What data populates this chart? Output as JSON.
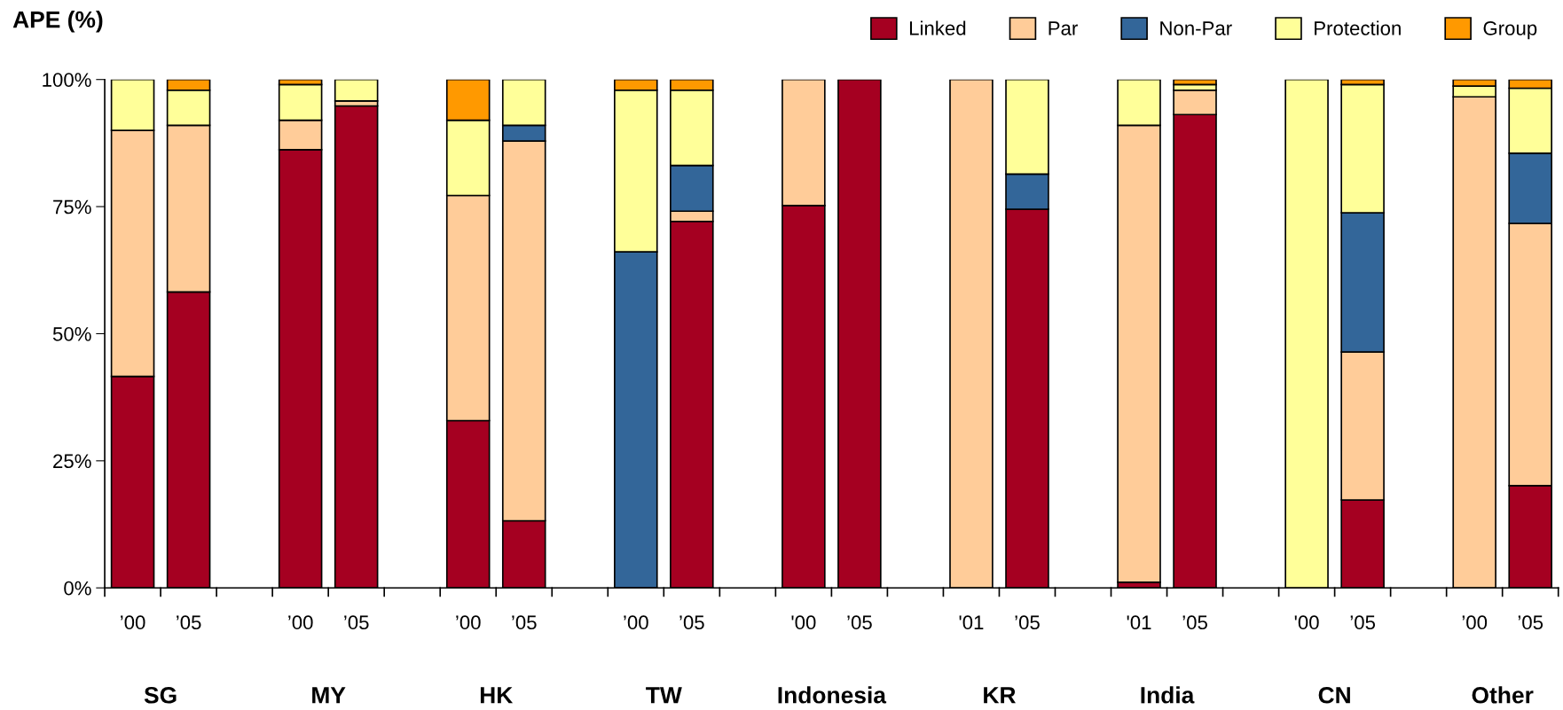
{
  "chart_data": {
    "type": "bar",
    "stacked": true,
    "title": "APE (%)",
    "categories": [
      "’00",
      "’05",
      null,
      "’00",
      "’05",
      null,
      "’00",
      "’05",
      null,
      "’00",
      "’05",
      null,
      "'00",
      "’05",
      null,
      "'01",
      "’05",
      null,
      "'01",
      "’05",
      null,
      "'00",
      "’05",
      null,
      "’00",
      "’05"
    ],
    "series": [
      {
        "name": "Linked",
        "color": "#a50021",
        "values": [
          41.6,
          58.2,
          null,
          86.2,
          94.8,
          null,
          32.9,
          13.2,
          null,
          null,
          72.1,
          null,
          75.2,
          100,
          null,
          null,
          74.5,
          null,
          1.1,
          93.1,
          null,
          null,
          17.3,
          null,
          null,
          20.1
        ]
      },
      {
        "name": "Par",
        "color": "#ffcc99",
        "values": [
          48.4,
          32.8,
          null,
          5.8,
          1.0,
          null,
          44.3,
          74.7,
          null,
          null,
          2.0,
          null,
          24.8,
          null,
          null,
          100,
          null,
          null,
          89.9,
          4.8,
          null,
          null,
          29.1,
          null,
          96.6,
          51.6
        ]
      },
      {
        "name": "Non-Par",
        "color": "#336699",
        "values": [
          null,
          null,
          null,
          null,
          null,
          null,
          null,
          3.1,
          null,
          66.1,
          9.0,
          null,
          null,
          null,
          null,
          null,
          6.9,
          null,
          null,
          null,
          null,
          null,
          27.4,
          null,
          null,
          13.8
        ]
      },
      {
        "name": "Protection",
        "color": "#ffff99",
        "values": [
          10.0,
          6.9,
          null,
          7.0,
          4.2,
          null,
          14.8,
          9.0,
          null,
          31.8,
          14.8,
          null,
          null,
          null,
          null,
          null,
          18.6,
          null,
          9.0,
          1.1,
          null,
          100,
          25.2,
          null,
          2.1,
          12.8
        ]
      },
      {
        "name": "Group",
        "color": "#ff9900",
        "values": [
          null,
          2.1,
          null,
          1.0,
          null,
          null,
          8.0,
          null,
          null,
          2.1,
          2.1,
          null,
          null,
          null,
          null,
          null,
          null,
          null,
          null,
          1.0,
          null,
          null,
          1.0,
          null,
          1.3,
          1.7
        ]
      }
    ],
    "ylim": [
      0,
      100
    ],
    "yticks": [
      {
        "value": 0,
        "label": "0%"
      },
      {
        "value": 25,
        "label": "25%"
      },
      {
        "value": 50,
        "label": "50%"
      },
      {
        "value": 75,
        "label": "75%"
      },
      {
        "value": 100,
        "label": "100%"
      }
    ],
    "grid": false,
    "legend": "top right",
    "annotations": [
      "SG",
      "MY",
      "HK",
      "TW",
      "Indonesia",
      "KR",
      "India",
      "CN",
      "Other"
    ]
  }
}
